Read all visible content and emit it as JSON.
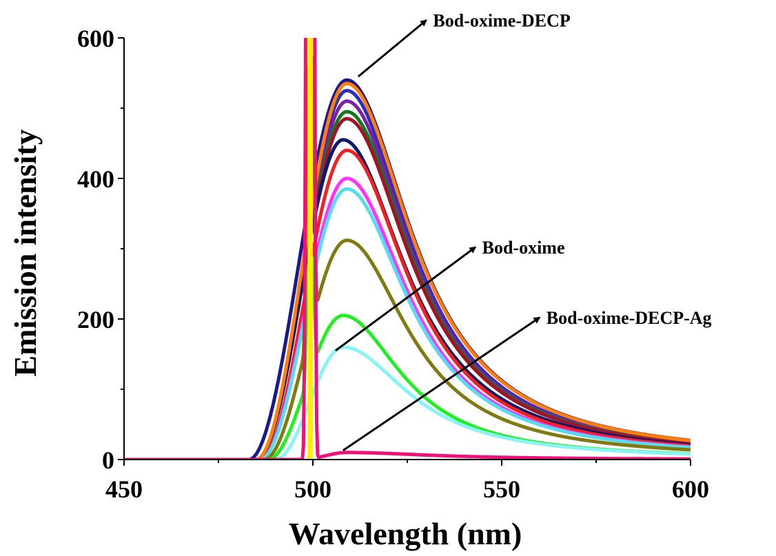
{
  "chart_data": {
    "type": "line",
    "xlabel": "Wavelength (nm)",
    "ylabel": "Emission intensity",
    "xlim": [
      450,
      600
    ],
    "ylim": [
      0,
      600
    ],
    "xticks": [
      450,
      500,
      550,
      600
    ],
    "yticks": [
      0,
      200,
      400,
      600
    ],
    "grid": false,
    "series": [
      {
        "color": "#1a1a8c",
        "peak_x": 509,
        "peak_y": 540,
        "fwhm": 30,
        "onset": 483,
        "scatter": 0
      },
      {
        "color": "#2e2eb8",
        "peak_x": 509,
        "peak_y": 525,
        "fwhm": 29,
        "onset": 485,
        "scatter": 0
      },
      {
        "color": "#7a1fa8",
        "peak_x": 509,
        "peak_y": 510,
        "fwhm": 29,
        "onset": 485,
        "scatter": 0
      },
      {
        "color": "#0f7a1f",
        "peak_x": 509,
        "peak_y": 495,
        "fwhm": 29,
        "onset": 485,
        "scatter": 0
      },
      {
        "color": "#a3122a",
        "peak_x": 509,
        "peak_y": 485,
        "fwhm": 29,
        "onset": 485,
        "scatter": 0
      },
      {
        "color": "#0a1a6e",
        "peak_x": 508,
        "peak_y": 455,
        "fwhm": 29,
        "onset": 485,
        "scatter": 0
      },
      {
        "color": "#ee2222",
        "peak_x": 509,
        "peak_y": 440,
        "fwhm": 28,
        "onset": 486,
        "scatter": 0
      },
      {
        "color": "#ff33ff",
        "peak_x": 509,
        "peak_y": 400,
        "fwhm": 28,
        "onset": 486,
        "scatter": 0
      },
      {
        "color": "#55ddee",
        "peak_x": 509,
        "peak_y": 385,
        "fwhm": 28,
        "onset": 486,
        "scatter": 0
      },
      {
        "color": "#807a10",
        "peak_x": 509,
        "peak_y": 312,
        "fwhm": 28,
        "onset": 487,
        "scatter": 385
      },
      {
        "color": "#22ee22",
        "peak_x": 508,
        "peak_y": 205,
        "fwhm": 27,
        "onset": 488,
        "scatter": 160
      },
      {
        "color": "#88f4f4",
        "peak_x": 508,
        "peak_y": 160,
        "fwhm": 30,
        "onset": 490,
        "scatter": 0
      },
      {
        "color": "#ff7f0e",
        "peak_x": 509,
        "peak_y": 535,
        "fwhm": 30,
        "onset": 485,
        "scatter": 0
      },
      {
        "color": "#ee1177",
        "peak_x": 509,
        "peak_y": 10,
        "fwhm": 40,
        "onset": 497,
        "scatter": 1500
      }
    ],
    "annotations": [
      {
        "text": "Bod-oxime-DECP",
        "from": [
          512,
          545
        ],
        "to": [
          530,
          625
        ]
      },
      {
        "text": "Bod-oxime",
        "from": [
          506,
          155
        ],
        "to": [
          543,
          302
        ]
      },
      {
        "text": "Bod-oxime-DECP-Ag",
        "from": [
          508,
          13
        ],
        "to": [
          560,
          202
        ]
      }
    ]
  }
}
